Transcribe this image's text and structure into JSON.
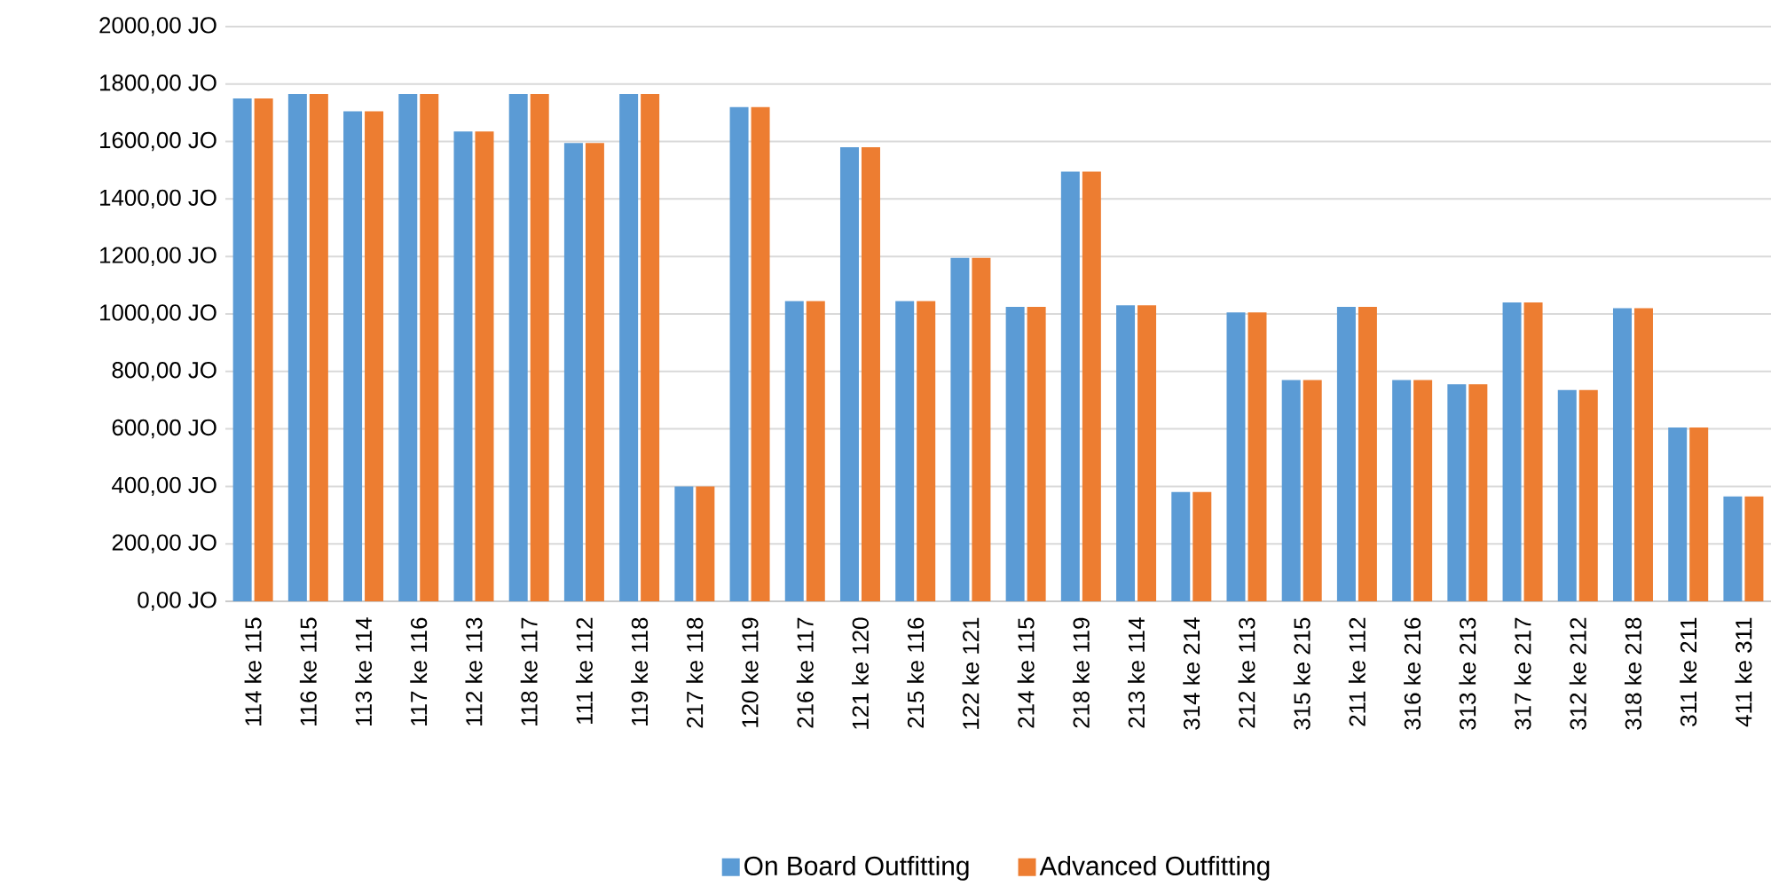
{
  "chart_data": {
    "type": "bar",
    "categories": [
      "114 ke 115",
      "116 ke 115",
      "113 ke 114",
      "117 ke 116",
      "112 ke 113",
      "118 ke 117",
      "111 ke 112",
      "119 ke 118",
      "217 ke 118",
      "120 ke 119",
      "216 ke 117",
      "121 ke 120",
      "215 ke 116",
      "122 ke 121",
      "214 ke 115",
      "218 ke 119",
      "213 ke 114",
      "314 ke 214",
      "212 ke 113",
      "315 ke 215",
      "211 ke 112",
      "316 ke 216",
      "313 ke 213",
      "317 ke 217",
      "312 ke 212",
      "318 ke 218",
      "311 ke 211",
      "411 ke 311"
    ],
    "series": [
      {
        "name": "On Board Outfitting",
        "color": "#5b9bd5",
        "values": [
          1750,
          1765,
          1705,
          1765,
          1635,
          1765,
          1595,
          1765,
          400,
          1720,
          1045,
          1580,
          1045,
          1195,
          1025,
          1495,
          1030,
          380,
          1005,
          770,
          1025,
          770,
          755,
          1040,
          735,
          1020,
          605,
          365
        ]
      },
      {
        "name": "Advanced Outfitting",
        "color": "#ed7d31",
        "values": [
          1750,
          1765,
          1705,
          1765,
          1635,
          1765,
          1595,
          1765,
          400,
          1720,
          1045,
          1580,
          1045,
          1195,
          1025,
          1495,
          1030,
          380,
          1005,
          770,
          1025,
          770,
          755,
          1040,
          735,
          1020,
          605,
          365
        ]
      }
    ],
    "ylim": [
      0,
      2000
    ],
    "yticks": [
      {
        "value": 0,
        "label": "0,00 JO"
      },
      {
        "value": 200,
        "label": "200,00 JO"
      },
      {
        "value": 400,
        "label": "400,00 JO"
      },
      {
        "value": 600,
        "label": "600,00 JO"
      },
      {
        "value": 800,
        "label": "800,00 JO"
      },
      {
        "value": 1000,
        "label": "1000,00 JO"
      },
      {
        "value": 1200,
        "label": "1200,00 JO"
      },
      {
        "value": 1400,
        "label": "1400,00 JO"
      },
      {
        "value": 1600,
        "label": "1600,00 JO"
      },
      {
        "value": 1800,
        "label": "1800,00 JO"
      },
      {
        "value": 2000,
        "label": "2000,00 JO"
      }
    ],
    "grid": "y",
    "legend": "bottom"
  }
}
